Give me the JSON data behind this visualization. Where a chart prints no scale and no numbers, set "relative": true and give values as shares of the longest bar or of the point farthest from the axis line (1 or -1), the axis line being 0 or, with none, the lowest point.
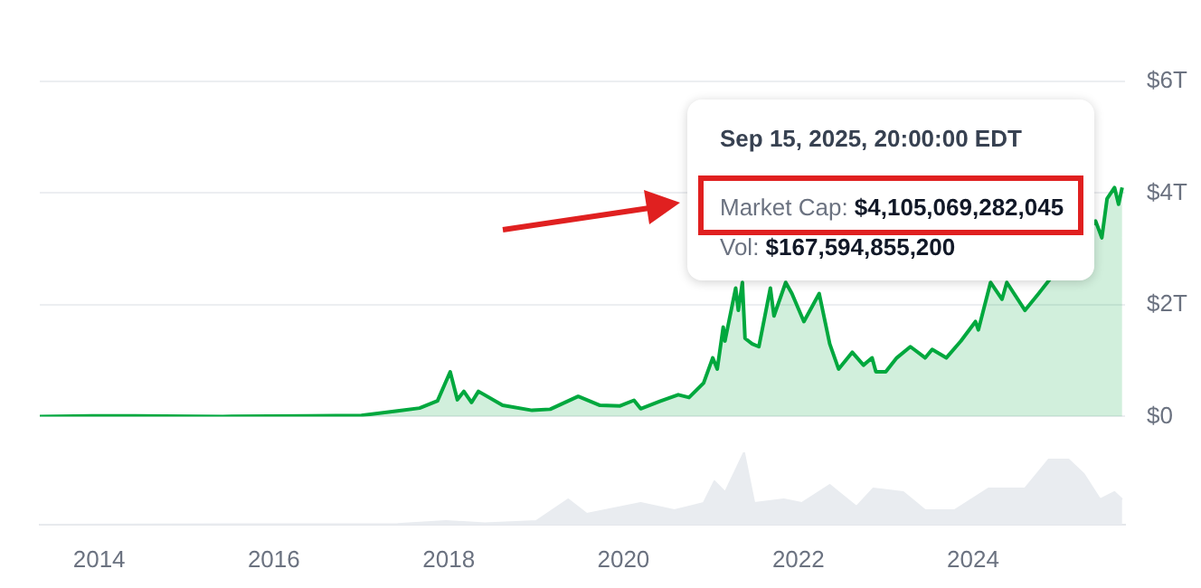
{
  "chart_data": [
    {
      "type": "area",
      "color": "#00a83e",
      "x": [
        "2013-04-28",
        "2013-12-01",
        "2014-06-01",
        "2015-06-01",
        "2016-06-01",
        "2017-01-01",
        "2017-06-01",
        "2017-09-01",
        "2017-11-15",
        "2018-01-07",
        "2018-02-06",
        "2018-03-05",
        "2018-04-06",
        "2018-05-05",
        "2018-08-14",
        "2018-12-15",
        "2019-03-01",
        "2019-06-26",
        "2019-09-25",
        "2019-12-18",
        "2020-02-14",
        "2020-03-13",
        "2020-06-01",
        "2020-08-17",
        "2020-10-01",
        "2020-12-01",
        "2021-01-08",
        "2021-01-27",
        "2021-02-21",
        "2021-02-28",
        "2021-04-14",
        "2021-04-25",
        "2021-05-12",
        "2021-05-23",
        "2021-06-22",
        "2021-07-20",
        "2021-09-06",
        "2021-09-21",
        "2021-11-09",
        "2021-12-05",
        "2022-01-24",
        "2022-03-29",
        "2022-05-12",
        "2022-06-18",
        "2022-08-14",
        "2022-09-30",
        "2022-11-05",
        "2022-11-21",
        "2023-01-01",
        "2023-02-16",
        "2023-04-14",
        "2023-06-15",
        "2023-07-14",
        "2023-09-11",
        "2023-11-11",
        "2024-01-11",
        "2024-01-23",
        "2024-03-14",
        "2024-05-01",
        "2024-05-21",
        "2024-08-05",
        "2024-10-01",
        "2024-11-12",
        "2024-12-17",
        "2025-01-21",
        "2025-02-28",
        "2025-04-08",
        "2025-05-27",
        "2025-06-22",
        "2025-07-14",
        "2025-08-14",
        "2025-08-31",
        "2025-09-15"
      ],
      "values": [
        0,
        0.01,
        0.01,
        0,
        0.01,
        0.02,
        0.1,
        0.15,
        0.28,
        0.8,
        0.3,
        0.45,
        0.25,
        0.45,
        0.2,
        0.11,
        0.13,
        0.36,
        0.2,
        0.19,
        0.29,
        0.14,
        0.27,
        0.39,
        0.34,
        0.6,
        1.05,
        0.85,
        1.6,
        1.35,
        2.3,
        1.9,
        2.4,
        1.4,
        1.3,
        1.25,
        2.3,
        1.8,
        2.4,
        2.2,
        1.7,
        2.2,
        1.3,
        0.85,
        1.15,
        0.92,
        1.05,
        0.8,
        0.8,
        1.05,
        1.25,
        1.05,
        1.2,
        1.05,
        1.35,
        1.7,
        1.55,
        2.4,
        2.1,
        2.4,
        1.9,
        2.2,
        null,
        null,
        null,
        null,
        null,
        3.5,
        3.2,
        3.9,
        4.1,
        3.8,
        4.1
      ],
      "xlim": [
        "2013-04-28",
        "2025-09-27"
      ],
      "ylim": [
        0,
        6
      ],
      "yticks": [
        {
          "value": 0,
          "label": "$0"
        },
        {
          "value": 2,
          "label": "$2T"
        },
        {
          "value": 4,
          "label": "$4T"
        },
        {
          "value": 6,
          "label": "$6T"
        }
      ],
      "grid": "y",
      "tick_labels": "y",
      "annotations": [
        "Sep 15, 2025, 20:00:00 EDT",
        "Market Cap: $4,105,069,282,045",
        "Vol: $167,594,855,200"
      ]
    },
    {
      "type": "area",
      "color": "#e9ecf0",
      "relative": true,
      "x": [
        "2013-04-28",
        "2017-06-01",
        "2017-12-20",
        "2018-06-01",
        "2019-01-01",
        "2019-05-15",
        "2019-08-01",
        "2020-03-13",
        "2020-08-01",
        "2020-12-01",
        "2021-01-15",
        "2021-03-01",
        "2021-05-19",
        "2021-07-01",
        "2021-11-01",
        "2022-01-15",
        "2022-05-12",
        "2022-06-18",
        "2022-09-01",
        "2022-11-10",
        "2023-03-15",
        "2023-06-15",
        "2023-10-15",
        "2024-03-05",
        "2024-08-05",
        "2024-11-12",
        "2025-02-03",
        "2025-04-08",
        "2025-06-15",
        "2025-08-14",
        "2025-09-15"
      ],
      "values": [
        0,
        0.01,
        0.05,
        0.02,
        0.05,
        0.35,
        0.15,
        0.3,
        0.2,
        0.3,
        0.6,
        0.45,
        1,
        0.3,
        0.35,
        0.3,
        0.55,
        0.45,
        0.25,
        0.5,
        0.45,
        0.2,
        0.2,
        0.5,
        0.5,
        0.9,
        0.9,
        0.7,
        0.35,
        0.45,
        0.35
      ],
      "xlim": [
        "2013-04-28",
        "2025-09-27"
      ],
      "xticks": [
        "2014",
        "2016",
        "2018",
        "2020",
        "2022",
        "2024"
      ],
      "tick_labels": "x"
    }
  ]
}
